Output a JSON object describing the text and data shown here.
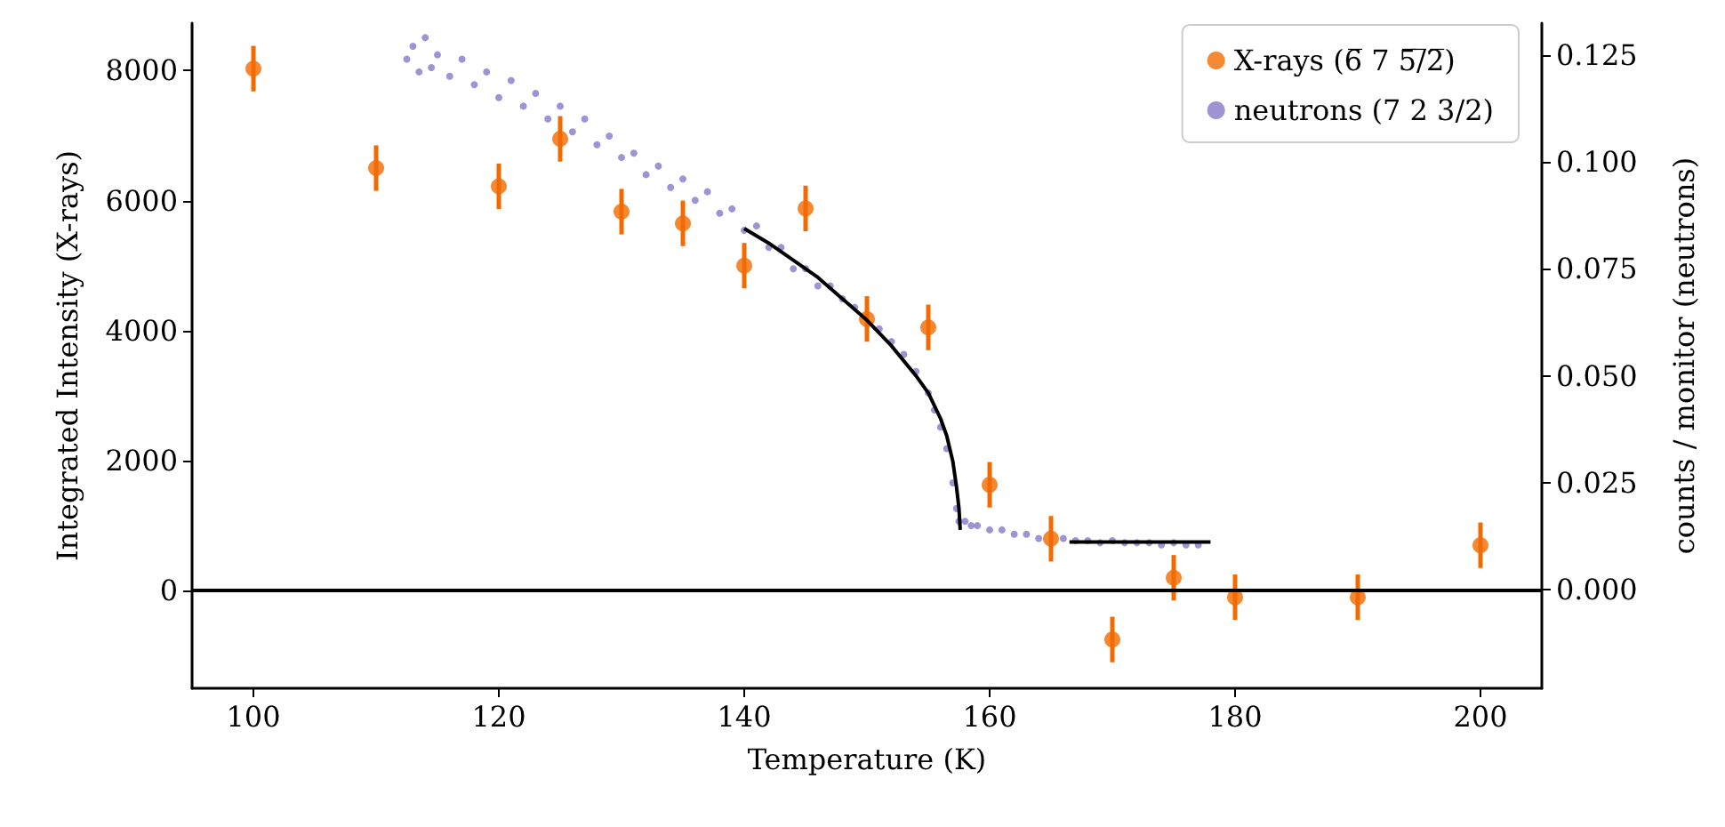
{
  "chart_data": {
    "type": "scatter",
    "xlabel": "Temperature (K)",
    "ylabel": "Integrated Intensity (X-rays)",
    "y2label": "counts / monitor (neutrons)",
    "xlim": [
      95,
      205
    ],
    "xticks": [
      100,
      120,
      140,
      160,
      180,
      200
    ],
    "ylim": [
      -1500,
      8730
    ],
    "yticks": [
      0,
      2000,
      4000,
      6000,
      8000
    ],
    "y2lim": [
      -0.023,
      0.1324
    ],
    "y2ticks": [
      {
        "value": 0,
        "label": "0.000"
      },
      {
        "value": 0.025,
        "label": "0.025"
      },
      {
        "value": 0.05,
        "label": "0.050"
      },
      {
        "value": 0.075,
        "label": "0.075"
      },
      {
        "value": 0.1,
        "label": "0.100"
      },
      {
        "value": 0.125,
        "label": "0.125"
      }
    ],
    "legend": "top right",
    "marker": "circle",
    "ref_lines": [
      {
        "axis": "y",
        "value": 0,
        "color": "#000000",
        "line_style": "solid"
      }
    ],
    "series": [
      {
        "name": "X-rays (6̅ 7 5̅/̅2̅)",
        "color": "#f36a00",
        "x": [
          100,
          110,
          120,
          125,
          130,
          135,
          140,
          145,
          150,
          155,
          160,
          165,
          170,
          175,
          180,
          190,
          200
        ],
        "values": [
          8030,
          6500,
          6220,
          6950,
          5830,
          5650,
          5000,
          5880,
          4180,
          4050,
          1630,
          800,
          -750,
          200,
          -100,
          -100,
          700
        ],
        "errors": [
          350,
          350,
          350,
          350,
          350,
          350,
          350,
          350,
          350,
          350,
          350,
          350,
          350,
          350,
          350,
          350,
          350
        ]
      },
      {
        "name": "neutrons (7 2 3/2)",
        "color": "#8878c9",
        "axis": "y2",
        "x": [
          112.5,
          113,
          113.5,
          114,
          114.5,
          115,
          116,
          117,
          118,
          119,
          120,
          121,
          122,
          123,
          124,
          125,
          126,
          127,
          128,
          129,
          130,
          131,
          132,
          133,
          134,
          135,
          136,
          137,
          138,
          139,
          140,
          141,
          142,
          143,
          144,
          145,
          146,
          147,
          148,
          149,
          150,
          151,
          152,
          153,
          154,
          155,
          155.5,
          156,
          156.5,
          157,
          157.3,
          157.5,
          158,
          158.5,
          159,
          160,
          161,
          162,
          163,
          164,
          165,
          166,
          167,
          168,
          169,
          170,
          171,
          172,
          173,
          174,
          175,
          176,
          177
        ],
        "values": [
          0.124,
          0.127,
          0.121,
          0.129,
          0.122,
          0.125,
          0.12,
          0.124,
          0.118,
          0.121,
          0.115,
          0.119,
          0.113,
          0.116,
          0.11,
          0.113,
          0.107,
          0.11,
          0.104,
          0.106,
          0.101,
          0.102,
          0.097,
          0.099,
          0.094,
          0.096,
          0.091,
          0.093,
          0.088,
          0.089,
          0.084,
          0.085,
          0.08,
          0.08,
          0.075,
          0.075,
          0.071,
          0.071,
          0.068,
          0.066,
          null,
          0.061,
          0.058,
          0.055,
          0.051,
          0.046,
          0.042,
          0.038,
          0.033,
          0.025,
          0.019,
          0.016,
          0.016,
          0.015,
          0.015,
          0.014,
          0.014,
          0.013,
          0.013,
          0.012,
          null,
          0.012,
          0.0115,
          0.0115,
          0.011,
          0.0115,
          0.011,
          0.011,
          0.011,
          0.0105,
          0.011,
          0.0105,
          0.0105
        ]
      },
      {
        "type": "line",
        "color": "#000000",
        "axis": "y2",
        "marker": "none",
        "x": [
          140,
          142,
          144,
          146,
          148,
          150,
          152,
          154,
          155,
          156,
          156.5,
          157,
          157.3,
          157.5,
          157.6
        ],
        "values": [
          0.0844,
          0.081,
          0.077,
          0.073,
          0.068,
          0.063,
          0.057,
          0.05,
          0.046,
          0.04,
          0.036,
          0.03,
          0.024,
          0.019,
          0.014
        ]
      },
      {
        "type": "line",
        "color": "#000000",
        "axis": "y2",
        "marker": "none",
        "x": [
          166.5,
          178
        ],
        "values": [
          0.0112,
          0.0112
        ]
      }
    ]
  }
}
